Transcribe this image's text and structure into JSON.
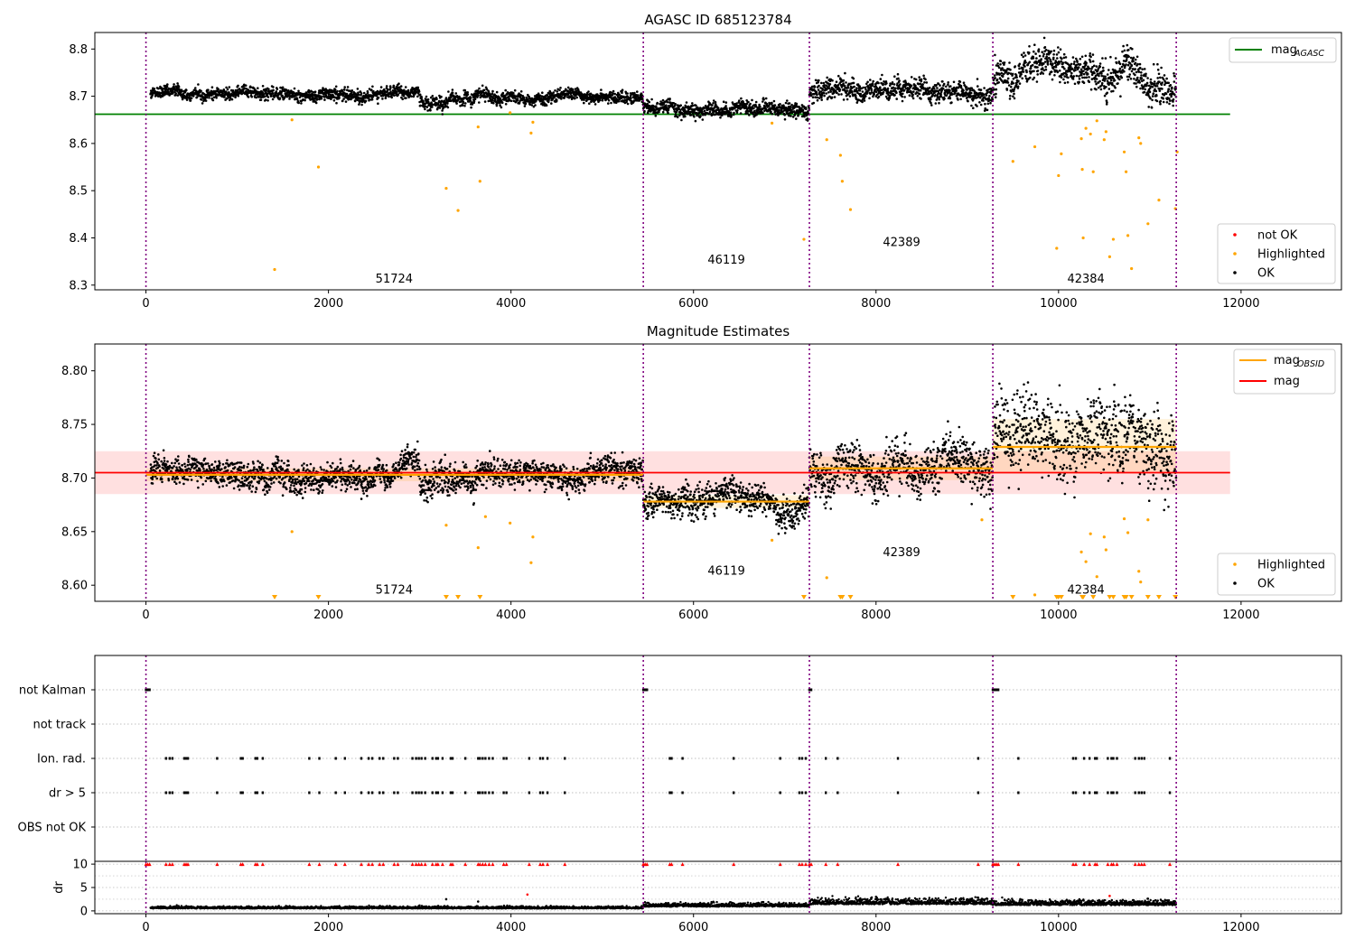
{
  "chart_data": [
    {
      "type": "scatter",
      "title": "AGASC ID 685123784",
      "xlim": [
        -560,
        13100
      ],
      "ylim": [
        8.29,
        8.835
      ],
      "x_ticks": [
        0,
        2000,
        4000,
        6000,
        8000,
        10000,
        12000
      ],
      "x_tick_labels": [
        "0",
        "2000",
        "4000",
        "6000",
        "8000",
        "10000",
        "12000"
      ],
      "y_ticks": [
        8.3,
        8.4,
        8.5,
        8.6,
        8.7,
        8.8
      ],
      "y_tick_labels": [
        "8.3",
        "8.4",
        "8.5",
        "8.6",
        "8.7",
        "8.8"
      ],
      "obsid_boundaries": [
        0,
        5450,
        7270,
        9280,
        11290
      ],
      "obsid_labels": [
        {
          "text": "51724",
          "x": 2720,
          "y": 8.305
        },
        {
          "text": "46119",
          "x": 6360,
          "y": 8.345
        },
        {
          "text": "42389",
          "x": 8280,
          "y": 8.383
        },
        {
          "text": "42384",
          "x": 10300,
          "y": 8.305
        }
      ],
      "mag_agasc": {
        "y": 8.662,
        "x_range": [
          -560,
          11880
        ],
        "color": "#008000"
      },
      "segments": [
        {
          "x": [
            50,
            3000
          ],
          "center": 8.705,
          "spread": 0.007
        },
        {
          "x": [
            3000,
            3600
          ],
          "center": 8.692,
          "spread": 0.008
        },
        {
          "x": [
            3600,
            5450
          ],
          "center": 8.702,
          "spread": 0.007
        },
        {
          "x": [
            5450,
            7270
          ],
          "center": 8.676,
          "spread": 0.008
        },
        {
          "x": [
            7270,
            9280
          ],
          "center": 8.71,
          "spread": 0.012
        },
        {
          "x": [
            9280,
            11290
          ],
          "center": 8.735,
          "spread": 0.02
        }
      ],
      "highlighted_outliers": [
        {
          "x": 1410,
          "y": 8.333
        },
        {
          "x": 1600,
          "y": 8.65
        },
        {
          "x": 1890,
          "y": 8.55
        },
        {
          "x": 3290,
          "y": 8.505
        },
        {
          "x": 3420,
          "y": 8.458
        },
        {
          "x": 3640,
          "y": 8.635
        },
        {
          "x": 3660,
          "y": 8.52
        },
        {
          "x": 3990,
          "y": 8.665
        },
        {
          "x": 4220,
          "y": 8.622
        },
        {
          "x": 4240,
          "y": 8.645
        },
        {
          "x": 6860,
          "y": 8.643
        },
        {
          "x": 7210,
          "y": 8.397
        },
        {
          "x": 7460,
          "y": 8.608
        },
        {
          "x": 7610,
          "y": 8.575
        },
        {
          "x": 7630,
          "y": 8.52
        },
        {
          "x": 7720,
          "y": 8.46
        },
        {
          "x": 9500,
          "y": 8.562
        },
        {
          "x": 9740,
          "y": 8.593
        },
        {
          "x": 9980,
          "y": 8.378
        },
        {
          "x": 10000,
          "y": 8.532
        },
        {
          "x": 10030,
          "y": 8.578
        },
        {
          "x": 10250,
          "y": 8.61
        },
        {
          "x": 10260,
          "y": 8.545
        },
        {
          "x": 10270,
          "y": 8.4
        },
        {
          "x": 10300,
          "y": 8.632
        },
        {
          "x": 10350,
          "y": 8.62
        },
        {
          "x": 10380,
          "y": 8.54
        },
        {
          "x": 10420,
          "y": 8.648
        },
        {
          "x": 10500,
          "y": 8.608
        },
        {
          "x": 10520,
          "y": 8.625
        },
        {
          "x": 10560,
          "y": 8.36
        },
        {
          "x": 10600,
          "y": 8.397
        },
        {
          "x": 10720,
          "y": 8.582
        },
        {
          "x": 10740,
          "y": 8.54
        },
        {
          "x": 10760,
          "y": 8.405
        },
        {
          "x": 10800,
          "y": 8.335
        },
        {
          "x": 10880,
          "y": 8.612
        },
        {
          "x": 10900,
          "y": 8.6
        },
        {
          "x": 10980,
          "y": 8.43
        },
        {
          "x": 11100,
          "y": 8.48
        },
        {
          "x": 11280,
          "y": 8.462
        },
        {
          "x": 11300,
          "y": 8.582
        }
      ],
      "legends": [
        {
          "entries": [
            {
              "label": "mag",
              "sub": "AGASC",
              "kind": "line",
              "color": "#008000"
            }
          ]
        },
        {
          "entries": [
            {
              "label": "not OK",
              "kind": "dot",
              "color": "#ff0000"
            },
            {
              "label": "Highlighted",
              "kind": "dot",
              "color": "#ffa500"
            },
            {
              "label": "OK",
              "kind": "dot",
              "color": "#000000"
            }
          ]
        }
      ]
    },
    {
      "type": "scatter",
      "title": "Magnitude Estimates",
      "xlim": [
        -560,
        13100
      ],
      "ylim": [
        8.585,
        8.825
      ],
      "x_ticks": [
        0,
        2000,
        4000,
        6000,
        8000,
        10000,
        12000
      ],
      "x_tick_labels": [
        "0",
        "2000",
        "4000",
        "6000",
        "8000",
        "10000",
        "12000"
      ],
      "y_ticks": [
        8.6,
        8.65,
        8.7,
        8.75,
        8.8
      ],
      "y_tick_labels": [
        "8.60",
        "8.65",
        "8.70",
        "8.75",
        "8.80"
      ],
      "obsid_boundaries": [
        0,
        5450,
        7270,
        9280,
        11290
      ],
      "obsid_labels": [
        {
          "text": "51724",
          "x": 2720,
          "y": 8.592
        },
        {
          "text": "46119",
          "x": 6360,
          "y": 8.61
        },
        {
          "text": "42389",
          "x": 8280,
          "y": 8.627
        },
        {
          "text": "42384",
          "x": 10300,
          "y": 8.592
        }
      ],
      "mag": {
        "y": 8.705,
        "band": [
          8.685,
          8.725
        ],
        "x_range": [
          -560,
          11880
        ],
        "color": "#ff0000"
      },
      "mag_obsid": [
        {
          "x": [
            0,
            5450
          ],
          "y": 8.703,
          "band": [
            8.697,
            8.709
          ]
        },
        {
          "x": [
            5450,
            7270
          ],
          "y": 8.678,
          "band": [
            8.672,
            8.684
          ]
        },
        {
          "x": [
            7270,
            9280
          ],
          "y": 8.709,
          "band": [
            8.698,
            8.72
          ]
        },
        {
          "x": [
            9280,
            11290
          ],
          "y": 8.729,
          "band": [
            8.705,
            8.755
          ]
        }
      ],
      "highlighted_outliers": [
        {
          "x": 1600,
          "y": 8.65
        },
        {
          "x": 3290,
          "y": 8.656
        },
        {
          "x": 3640,
          "y": 8.635
        },
        {
          "x": 3720,
          "y": 8.664
        },
        {
          "x": 3990,
          "y": 8.658
        },
        {
          "x": 4220,
          "y": 8.621
        },
        {
          "x": 4240,
          "y": 8.645
        },
        {
          "x": 6860,
          "y": 8.642
        },
        {
          "x": 7460,
          "y": 8.607
        },
        {
          "x": 9160,
          "y": 8.661
        },
        {
          "x": 9740,
          "y": 8.591
        },
        {
          "x": 10250,
          "y": 8.631
        },
        {
          "x": 10300,
          "y": 8.622
        },
        {
          "x": 10350,
          "y": 8.648
        },
        {
          "x": 10420,
          "y": 8.608
        },
        {
          "x": 10500,
          "y": 8.645
        },
        {
          "x": 10520,
          "y": 8.633
        },
        {
          "x": 10720,
          "y": 8.662
        },
        {
          "x": 10760,
          "y": 8.649
        },
        {
          "x": 10880,
          "y": 8.613
        },
        {
          "x": 10900,
          "y": 8.603
        },
        {
          "x": 10980,
          "y": 8.661
        }
      ],
      "below_range_markers": [
        1410,
        1890,
        3290,
        3420,
        3660,
        7210,
        7610,
        7630,
        7720,
        9500,
        9980,
        10000,
        10030,
        10260,
        10270,
        10380,
        10560,
        10600,
        10720,
        10740,
        10800,
        10980,
        11100,
        11280
      ],
      "legends": [
        {
          "entries": [
            {
              "label": "mag",
              "sub": "OBSID",
              "kind": "line",
              "color": "#ffa500"
            },
            {
              "label": "mag",
              "kind": "line",
              "color": "#ff0000"
            }
          ]
        },
        {
          "entries": [
            {
              "label": "Highlighted",
              "kind": "dot",
              "color": "#ffa500"
            },
            {
              "label": "OK",
              "kind": "dot",
              "color": "#000000"
            }
          ]
        }
      ]
    },
    {
      "type": "scatter",
      "xlim": [
        -560,
        13100
      ],
      "x_ticks": [
        0,
        2000,
        4000,
        6000,
        8000,
        10000,
        12000
      ],
      "x_tick_labels": [
        "0",
        "2000",
        "4000",
        "6000",
        "8000",
        "10000",
        "12000"
      ],
      "flag_rows": [
        "not Kalman",
        "not track",
        "Ion. rad.",
        "dr > 5",
        "OBS not OK"
      ],
      "flag_events": {
        "not Kalman": [
          0,
          20,
          40,
          5450,
          5470,
          5490,
          7270,
          7290,
          9280,
          9300,
          9320,
          9340
        ],
        "not track": [],
        "Ion. rad.": [
          220,
          260,
          290,
          420,
          440,
          460,
          780,
          1040,
          1060,
          1200,
          1220,
          1280,
          1790,
          1900,
          2080,
          2180,
          2360,
          2440,
          2480,
          2560,
          2600,
          2720,
          2760,
          2920,
          2960,
          2990,
          3020,
          3060,
          3140,
          3180,
          3200,
          3250,
          3340,
          3360,
          3500,
          3640,
          3660,
          3690,
          3720,
          3760,
          3800,
          3920,
          3950,
          4200,
          4320,
          4350,
          4400,
          4590,
          5740,
          5760,
          5880,
          6440,
          6950,
          7160,
          7190,
          7230,
          7450,
          7580,
          8240,
          9120,
          9560,
          10160,
          10190,
          10280,
          10340,
          10400,
          10420,
          10540,
          10580,
          10600,
          10640,
          10840,
          10880,
          10910,
          10940,
          11220
        ],
        "dr > 5": [
          220,
          260,
          290,
          420,
          440,
          460,
          780,
          1040,
          1060,
          1200,
          1220,
          1280,
          1790,
          1900,
          2080,
          2180,
          2360,
          2440,
          2480,
          2560,
          2600,
          2720,
          2760,
          2920,
          2960,
          2990,
          3020,
          3060,
          3140,
          3180,
          3200,
          3250,
          3340,
          3360,
          3500,
          3640,
          3660,
          3690,
          3720,
          3760,
          3800,
          3920,
          3950,
          4200,
          4320,
          4350,
          4400,
          4590,
          5740,
          5760,
          5880,
          6440,
          6950,
          7160,
          7190,
          7230,
          7450,
          7580,
          8240,
          9120,
          9560,
          10160,
          10190,
          10280,
          10340,
          10400,
          10420,
          10540,
          10580,
          10600,
          10640,
          10840,
          10880,
          10910,
          10940,
          11220
        ],
        "OBS not OK": []
      },
      "dr_panel": {
        "ylabel": "dr",
        "ylim": [
          -0.6,
          10.6
        ],
        "y_ticks": [
          0,
          5,
          10
        ],
        "y_tick_labels": [
          "0",
          "5",
          "10"
        ],
        "segments": [
          {
            "x": [
              50,
              5450
            ],
            "level": 0.5
          },
          {
            "x": [
              5450,
              7270
            ],
            "level": 0.9
          },
          {
            "x": [
              7270,
              9280
            ],
            "level": 1.4
          },
          {
            "x": [
              9280,
              11290
            ],
            "level": 1.2
          }
        ],
        "clipped_color": "#ff0000"
      }
    }
  ]
}
